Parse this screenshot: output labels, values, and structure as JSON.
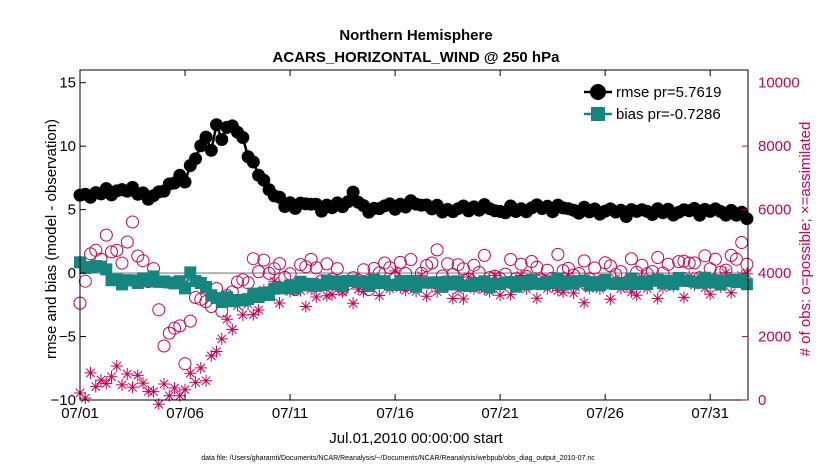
{
  "chart_data": {
    "type": "line",
    "title": "Northern Hemisphere",
    "subtitle": "ACARS_HORIZONTAL_WIND @ 250 hPa",
    "xlabel": "Jul.01,2010 00:00:00 start",
    "ylabel": "rmse and bias (model - observation)",
    "y2label": "# of obs: o=possible; ×=assimilated",
    "footnote": "data file: /Users/gharamti/Documents/NCAR/Reanalysis/~/Documents/NCAR/Reanalysis/webpub/obs_diag_output_2010-07.nc",
    "xlim": [
      0.0,
      31.8
    ],
    "ylim": [
      -10,
      16
    ],
    "y2lim": [
      0,
      10400
    ],
    "x_ticks": [
      0,
      5,
      10,
      15,
      20,
      25,
      30
    ],
    "x_tick_labels": [
      "07/01",
      "07/06",
      "07/11",
      "07/16",
      "07/21",
      "07/26",
      "07/31"
    ],
    "y_ticks": [
      -10,
      -5,
      0,
      5,
      10,
      15
    ],
    "y2_ticks": [
      0,
      2000,
      4000,
      6000,
      8000,
      10000
    ],
    "zero_line": 0,
    "grid": false,
    "legend_position": "top-right",
    "colors": {
      "rmse": "#000000",
      "bias": "#14857f",
      "obs": "#cc0055",
      "zero": "#b3b3b3"
    },
    "series": [
      {
        "name": "rmse",
        "legend": "rmse pr=5.7619",
        "axis": "left",
        "marker": "circle",
        "knots": [
          [
            0,
            6.0
          ],
          [
            0.5,
            6.1
          ],
          [
            1,
            6.5
          ],
          [
            1.5,
            6.2
          ],
          [
            2,
            6.7
          ],
          [
            3,
            6.2
          ],
          [
            3.5,
            6.0
          ],
          [
            4,
            6.5
          ],
          [
            4.6,
            7.6
          ],
          [
            5,
            7.2
          ],
          [
            5.3,
            8.6
          ],
          [
            5.6,
            9.4
          ],
          [
            5.9,
            11.0
          ],
          [
            6.2,
            9.4
          ],
          [
            6.5,
            11.5
          ],
          [
            6.8,
            10.7
          ],
          [
            7.1,
            11.8
          ],
          [
            7.4,
            11.2
          ],
          [
            7.7,
            10.8
          ],
          [
            8,
            9.5
          ],
          [
            8.4,
            8.0
          ],
          [
            8.8,
            7.0
          ],
          [
            9.3,
            6.2
          ],
          [
            9.8,
            5.2
          ],
          [
            10.5,
            5.5
          ],
          [
            11.5,
            5.2
          ],
          [
            12.5,
            5.3
          ],
          [
            13,
            6.3
          ],
          [
            13.5,
            5.0
          ],
          [
            15,
            5.3
          ],
          [
            16.3,
            5.5
          ],
          [
            17,
            5.0
          ],
          [
            18,
            5.0
          ],
          [
            19,
            5.2
          ],
          [
            20,
            4.9
          ],
          [
            21,
            5.0
          ],
          [
            22,
            5.2
          ],
          [
            23,
            5.1
          ],
          [
            24,
            4.9
          ],
          [
            25,
            4.9
          ],
          [
            26,
            4.8
          ],
          [
            27,
            4.9
          ],
          [
            28,
            4.8
          ],
          [
            29,
            4.9
          ],
          [
            30,
            4.9
          ],
          [
            31,
            4.8
          ],
          [
            31.5,
            4.5
          ]
        ],
        "amplitude": 0.35
      },
      {
        "name": "bias",
        "legend": "bias pr=-0.7286",
        "axis": "left",
        "marker": "square",
        "knots": [
          [
            0,
            0.6
          ],
          [
            1,
            0.5
          ],
          [
            1.4,
            -0.2
          ],
          [
            2,
            -0.8
          ],
          [
            3,
            -0.5
          ],
          [
            4,
            -0.6
          ],
          [
            5,
            -1.0
          ],
          [
            5.3,
            0.2
          ],
          [
            5.6,
            -0.8
          ],
          [
            6,
            -1.2
          ],
          [
            6.5,
            -2.0
          ],
          [
            7,
            -2.2
          ],
          [
            8,
            -2.0
          ],
          [
            9,
            -1.5
          ],
          [
            10,
            -1.0
          ],
          [
            11,
            -0.9
          ],
          [
            13,
            -0.7
          ],
          [
            15,
            -0.8
          ],
          [
            17,
            -0.8
          ],
          [
            19,
            -0.9
          ],
          [
            21,
            -0.8
          ],
          [
            23,
            -0.7
          ],
          [
            25,
            -0.8
          ],
          [
            27,
            -0.7
          ],
          [
            29,
            -0.6
          ],
          [
            31,
            -0.7
          ],
          [
            31.5,
            -0.6
          ]
        ],
        "amplitude": 0.3
      },
      {
        "name": "possible",
        "axis": "right",
        "marker": "open-circle",
        "knots": [
          [
            0,
            2700
          ],
          [
            0.5,
            4800
          ],
          [
            1,
            4600
          ],
          [
            1.5,
            4900
          ],
          [
            2,
            4500
          ],
          [
            2.5,
            5300
          ],
          [
            3,
            4300
          ],
          [
            3.5,
            3800
          ],
          [
            4,
            1800
          ],
          [
            4.5,
            2500
          ],
          [
            5,
            1300
          ],
          [
            5.5,
            3500
          ],
          [
            6,
            2800
          ],
          [
            6.5,
            3400
          ],
          [
            7,
            3000
          ],
          [
            7.5,
            3700
          ],
          [
            8,
            4000
          ],
          [
            9,
            4300
          ],
          [
            10,
            3800
          ],
          [
            11,
            4300
          ],
          [
            12,
            3900
          ],
          [
            13,
            3700
          ],
          [
            14,
            4000
          ],
          [
            15,
            4200
          ],
          [
            16,
            4000
          ],
          [
            17,
            4400
          ],
          [
            18,
            4000
          ],
          [
            19,
            4200
          ],
          [
            20,
            3900
          ],
          [
            21,
            4200
          ],
          [
            22,
            4000
          ],
          [
            23,
            4200
          ],
          [
            24,
            4000
          ],
          [
            25,
            4100
          ],
          [
            26,
            4000
          ],
          [
            27,
            4200
          ],
          [
            28,
            4100
          ],
          [
            29,
            4300
          ],
          [
            30,
            4200
          ],
          [
            31,
            4300
          ],
          [
            31.5,
            4700
          ]
        ],
        "amplitude": 450
      },
      {
        "name": "assimilated",
        "axis": "right",
        "marker": "asterisk",
        "knots": [
          [
            0,
            200
          ],
          [
            0.5,
            450
          ],
          [
            1,
            600
          ],
          [
            1.5,
            800
          ],
          [
            2,
            650
          ],
          [
            2.5,
            750
          ],
          [
            3,
            400
          ],
          [
            3.5,
            250
          ],
          [
            4,
            150
          ],
          [
            4.5,
            250
          ],
          [
            5,
            450
          ],
          [
            5.5,
            650
          ],
          [
            6,
            1000
          ],
          [
            6.3,
            1300
          ],
          [
            6.6,
            1500
          ],
          [
            7,
            2500
          ],
          [
            7.5,
            2700
          ],
          [
            8,
            2800
          ],
          [
            8.5,
            3000
          ],
          [
            9,
            3500
          ],
          [
            10,
            3400
          ],
          [
            11,
            3300
          ],
          [
            12,
            3500
          ],
          [
            13,
            3400
          ],
          [
            14,
            3600
          ],
          [
            15,
            3700
          ],
          [
            16,
            3500
          ],
          [
            17,
            3600
          ],
          [
            18,
            3400
          ],
          [
            19,
            3600
          ],
          [
            20,
            3500
          ],
          [
            21,
            3700
          ],
          [
            22,
            3500
          ],
          [
            23,
            3600
          ],
          [
            24,
            3400
          ],
          [
            25,
            3600
          ],
          [
            26,
            3500
          ],
          [
            27,
            3600
          ],
          [
            28,
            3500
          ],
          [
            29,
            3700
          ],
          [
            30,
            3600
          ],
          [
            31,
            3700
          ],
          [
            31.5,
            3900
          ]
        ],
        "amplitude": 420
      }
    ]
  }
}
